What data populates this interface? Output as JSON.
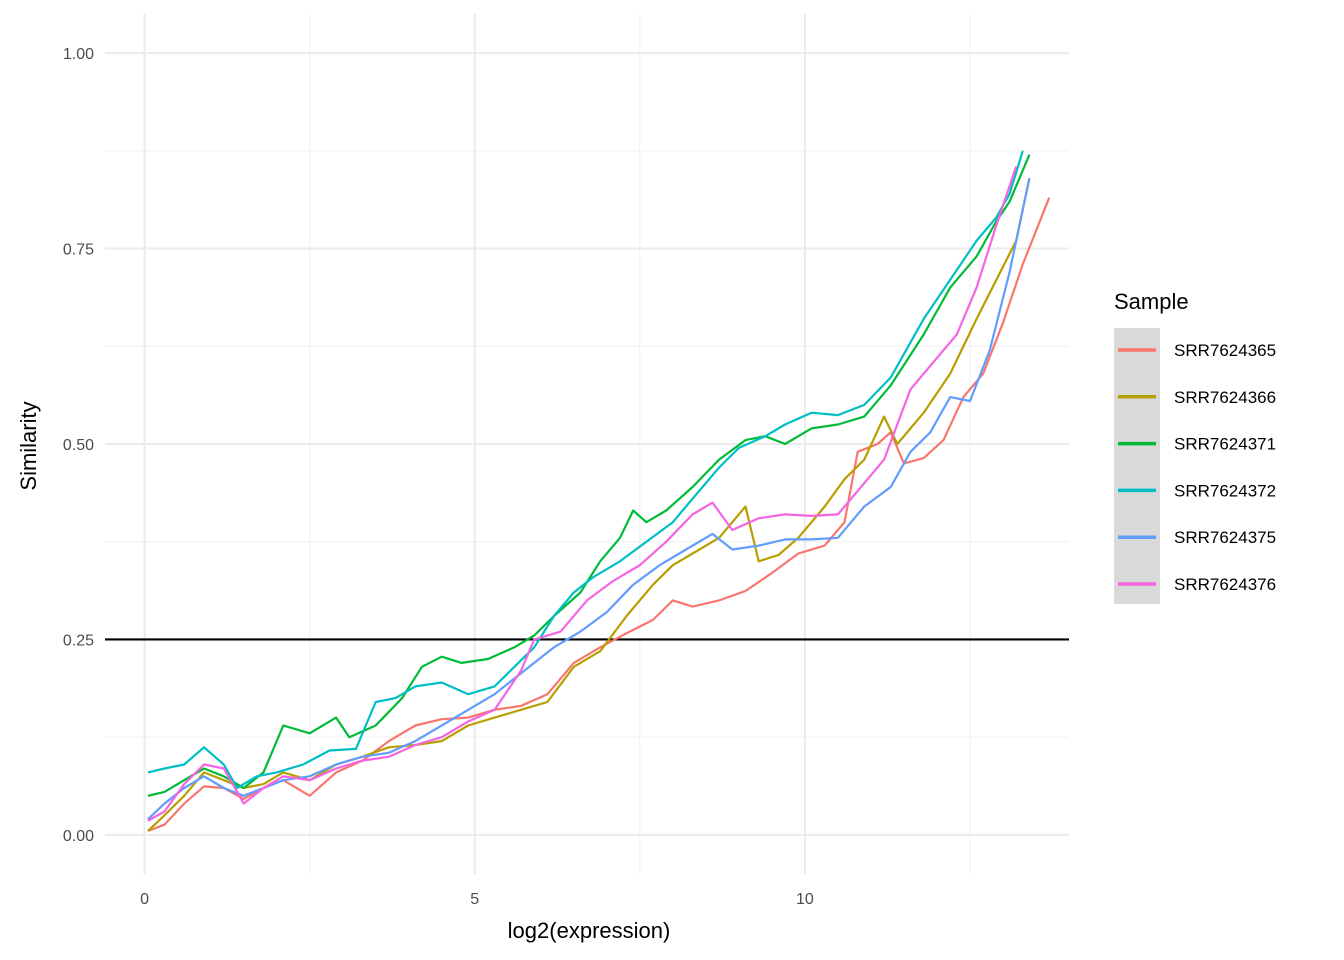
{
  "chart_data": {
    "type": "line",
    "title": "",
    "xlabel": "log2(expression)",
    "ylabel": "Similarity",
    "xlim": [
      -0.6,
      14.0
    ],
    "ylim": [
      -0.05,
      1.05
    ],
    "x_ticks": [
      0,
      5,
      10
    ],
    "x_tick_labels": [
      "0",
      "5",
      "10"
    ],
    "y_ticks": [
      0,
      0.25,
      0.5,
      0.75,
      1.0
    ],
    "y_tick_labels": [
      "0.00",
      "0.25",
      "0.50",
      "0.75",
      "1.00"
    ],
    "grid": true,
    "reference_line": {
      "y": 0.25,
      "color": "#000000"
    },
    "legend": {
      "title": "Sample",
      "placement": "right"
    },
    "series": [
      {
        "name": "SRR7624365",
        "color": "#F8766D",
        "points": [
          [
            0.05,
            0.005
          ],
          [
            0.3,
            0.013
          ],
          [
            0.6,
            0.04
          ],
          [
            0.9,
            0.062
          ],
          [
            1.2,
            0.06
          ],
          [
            1.5,
            0.046
          ],
          [
            1.8,
            0.06
          ],
          [
            2.1,
            0.07
          ],
          [
            2.5,
            0.05
          ],
          [
            2.9,
            0.08
          ],
          [
            3.3,
            0.095
          ],
          [
            3.7,
            0.12
          ],
          [
            4.1,
            0.14
          ],
          [
            4.5,
            0.148
          ],
          [
            4.9,
            0.15
          ],
          [
            5.3,
            0.16
          ],
          [
            5.7,
            0.165
          ],
          [
            6.1,
            0.18
          ],
          [
            6.5,
            0.22
          ],
          [
            6.9,
            0.24
          ],
          [
            7.3,
            0.258
          ],
          [
            7.7,
            0.275
          ],
          [
            8.0,
            0.3
          ],
          [
            8.3,
            0.292
          ],
          [
            8.7,
            0.3
          ],
          [
            9.1,
            0.312
          ],
          [
            9.5,
            0.335
          ],
          [
            9.9,
            0.36
          ],
          [
            10.3,
            0.37
          ],
          [
            10.6,
            0.4
          ],
          [
            10.8,
            0.49
          ],
          [
            11.1,
            0.5
          ],
          [
            11.3,
            0.515
          ],
          [
            11.5,
            0.475
          ],
          [
            11.8,
            0.482
          ],
          [
            12.1,
            0.505
          ],
          [
            12.4,
            0.56
          ],
          [
            12.7,
            0.59
          ],
          [
            13.0,
            0.655
          ],
          [
            13.3,
            0.73
          ],
          [
            13.7,
            0.815
          ]
        ]
      },
      {
        "name": "SRR7624366",
        "color": "#B79F00",
        "points": [
          [
            0.05,
            0.005
          ],
          [
            0.3,
            0.025
          ],
          [
            0.6,
            0.05
          ],
          [
            0.9,
            0.08
          ],
          [
            1.2,
            0.07
          ],
          [
            1.5,
            0.06
          ],
          [
            1.8,
            0.065
          ],
          [
            2.1,
            0.08
          ],
          [
            2.5,
            0.07
          ],
          [
            2.9,
            0.09
          ],
          [
            3.3,
            0.1
          ],
          [
            3.7,
            0.112
          ],
          [
            4.1,
            0.115
          ],
          [
            4.5,
            0.12
          ],
          [
            4.9,
            0.14
          ],
          [
            5.3,
            0.15
          ],
          [
            5.7,
            0.16
          ],
          [
            6.1,
            0.17
          ],
          [
            6.5,
            0.215
          ],
          [
            6.9,
            0.235
          ],
          [
            7.3,
            0.28
          ],
          [
            7.7,
            0.32
          ],
          [
            8.0,
            0.345
          ],
          [
            8.3,
            0.36
          ],
          [
            8.7,
            0.38
          ],
          [
            9.1,
            0.42
          ],
          [
            9.3,
            0.35
          ],
          [
            9.6,
            0.358
          ],
          [
            9.9,
            0.38
          ],
          [
            10.3,
            0.42
          ],
          [
            10.6,
            0.455
          ],
          [
            10.9,
            0.48
          ],
          [
            11.2,
            0.535
          ],
          [
            11.4,
            0.5
          ],
          [
            11.8,
            0.54
          ],
          [
            12.2,
            0.59
          ],
          [
            12.6,
            0.66
          ],
          [
            12.9,
            0.71
          ],
          [
            13.2,
            0.76
          ],
          [
            13.4,
            0.84
          ]
        ]
      },
      {
        "name": "SRR7624371",
        "color": "#00BA38",
        "points": [
          [
            0.05,
            0.05
          ],
          [
            0.3,
            0.055
          ],
          [
            0.6,
            0.07
          ],
          [
            0.9,
            0.085
          ],
          [
            1.2,
            0.075
          ],
          [
            1.5,
            0.06
          ],
          [
            1.8,
            0.08
          ],
          [
            2.1,
            0.14
          ],
          [
            2.5,
            0.13
          ],
          [
            2.9,
            0.15
          ],
          [
            3.1,
            0.125
          ],
          [
            3.5,
            0.14
          ],
          [
            3.9,
            0.175
          ],
          [
            4.2,
            0.215
          ],
          [
            4.5,
            0.228
          ],
          [
            4.8,
            0.22
          ],
          [
            5.2,
            0.225
          ],
          [
            5.6,
            0.24
          ],
          [
            5.9,
            0.255
          ],
          [
            6.2,
            0.28
          ],
          [
            6.6,
            0.31
          ],
          [
            6.9,
            0.35
          ],
          [
            7.2,
            0.38
          ],
          [
            7.4,
            0.415
          ],
          [
            7.6,
            0.4
          ],
          [
            7.9,
            0.415
          ],
          [
            8.3,
            0.445
          ],
          [
            8.7,
            0.48
          ],
          [
            9.1,
            0.505
          ],
          [
            9.4,
            0.51
          ],
          [
            9.7,
            0.5
          ],
          [
            10.1,
            0.52
          ],
          [
            10.5,
            0.525
          ],
          [
            10.9,
            0.535
          ],
          [
            11.3,
            0.575
          ],
          [
            11.8,
            0.64
          ],
          [
            12.2,
            0.7
          ],
          [
            12.6,
            0.74
          ],
          [
            12.9,
            0.785
          ],
          [
            13.1,
            0.81
          ],
          [
            13.4,
            0.87
          ]
        ]
      },
      {
        "name": "SRR7624372",
        "color": "#00BFC4",
        "points": [
          [
            0.05,
            0.08
          ],
          [
            0.3,
            0.085
          ],
          [
            0.6,
            0.09
          ],
          [
            0.9,
            0.112
          ],
          [
            1.2,
            0.09
          ],
          [
            1.4,
            0.06
          ],
          [
            1.7,
            0.075
          ],
          [
            2.0,
            0.08
          ],
          [
            2.4,
            0.09
          ],
          [
            2.8,
            0.108
          ],
          [
            3.2,
            0.11
          ],
          [
            3.5,
            0.17
          ],
          [
            3.8,
            0.175
          ],
          [
            4.1,
            0.19
          ],
          [
            4.5,
            0.195
          ],
          [
            4.9,
            0.18
          ],
          [
            5.3,
            0.19
          ],
          [
            5.6,
            0.215
          ],
          [
            5.9,
            0.24
          ],
          [
            6.2,
            0.28
          ],
          [
            6.5,
            0.31
          ],
          [
            6.8,
            0.33
          ],
          [
            7.2,
            0.35
          ],
          [
            7.6,
            0.375
          ],
          [
            8.0,
            0.4
          ],
          [
            8.3,
            0.43
          ],
          [
            8.7,
            0.47
          ],
          [
            9.0,
            0.495
          ],
          [
            9.4,
            0.51
          ],
          [
            9.7,
            0.525
          ],
          [
            10.1,
            0.54
          ],
          [
            10.5,
            0.537
          ],
          [
            10.9,
            0.55
          ],
          [
            11.3,
            0.585
          ],
          [
            11.8,
            0.66
          ],
          [
            12.2,
            0.71
          ],
          [
            12.6,
            0.76
          ],
          [
            12.9,
            0.79
          ],
          [
            13.1,
            0.82
          ],
          [
            13.3,
            0.875
          ]
        ]
      },
      {
        "name": "SRR7624375",
        "color": "#619CFF",
        "points": [
          [
            0.05,
            0.02
          ],
          [
            0.3,
            0.04
          ],
          [
            0.6,
            0.06
          ],
          [
            0.9,
            0.075
          ],
          [
            1.2,
            0.06
          ],
          [
            1.5,
            0.05
          ],
          [
            1.8,
            0.06
          ],
          [
            2.1,
            0.07
          ],
          [
            2.5,
            0.075
          ],
          [
            2.9,
            0.09
          ],
          [
            3.3,
            0.1
          ],
          [
            3.7,
            0.105
          ],
          [
            4.1,
            0.12
          ],
          [
            4.5,
            0.14
          ],
          [
            4.9,
            0.16
          ],
          [
            5.3,
            0.18
          ],
          [
            5.6,
            0.2
          ],
          [
            5.9,
            0.22
          ],
          [
            6.2,
            0.24
          ],
          [
            6.6,
            0.26
          ],
          [
            7.0,
            0.285
          ],
          [
            7.4,
            0.32
          ],
          [
            7.8,
            0.345
          ],
          [
            8.2,
            0.365
          ],
          [
            8.6,
            0.385
          ],
          [
            8.9,
            0.365
          ],
          [
            9.3,
            0.37
          ],
          [
            9.7,
            0.378
          ],
          [
            10.1,
            0.378
          ],
          [
            10.5,
            0.38
          ],
          [
            10.9,
            0.42
          ],
          [
            11.3,
            0.445
          ],
          [
            11.6,
            0.49
          ],
          [
            11.9,
            0.515
          ],
          [
            12.2,
            0.56
          ],
          [
            12.5,
            0.555
          ],
          [
            12.8,
            0.62
          ],
          [
            13.1,
            0.72
          ],
          [
            13.4,
            0.84
          ]
        ]
      },
      {
        "name": "SRR7624376",
        "color": "#F564E3",
        "points": [
          [
            0.05,
            0.018
          ],
          [
            0.3,
            0.03
          ],
          [
            0.6,
            0.065
          ],
          [
            0.9,
            0.09
          ],
          [
            1.2,
            0.085
          ],
          [
            1.5,
            0.04
          ],
          [
            1.8,
            0.06
          ],
          [
            2.1,
            0.075
          ],
          [
            2.5,
            0.07
          ],
          [
            2.9,
            0.085
          ],
          [
            3.3,
            0.095
          ],
          [
            3.7,
            0.1
          ],
          [
            4.1,
            0.115
          ],
          [
            4.5,
            0.125
          ],
          [
            4.9,
            0.145
          ],
          [
            5.3,
            0.16
          ],
          [
            5.7,
            0.21
          ],
          [
            5.9,
            0.25
          ],
          [
            6.3,
            0.26
          ],
          [
            6.7,
            0.3
          ],
          [
            7.1,
            0.325
          ],
          [
            7.5,
            0.345
          ],
          [
            7.9,
            0.375
          ],
          [
            8.3,
            0.41
          ],
          [
            8.6,
            0.425
          ],
          [
            8.9,
            0.39
          ],
          [
            9.3,
            0.405
          ],
          [
            9.7,
            0.41
          ],
          [
            10.1,
            0.408
          ],
          [
            10.5,
            0.41
          ],
          [
            10.8,
            0.44
          ],
          [
            11.2,
            0.48
          ],
          [
            11.6,
            0.57
          ],
          [
            11.9,
            0.6
          ],
          [
            12.3,
            0.64
          ],
          [
            12.6,
            0.7
          ],
          [
            12.9,
            0.78
          ],
          [
            13.2,
            0.855
          ]
        ]
      }
    ]
  }
}
